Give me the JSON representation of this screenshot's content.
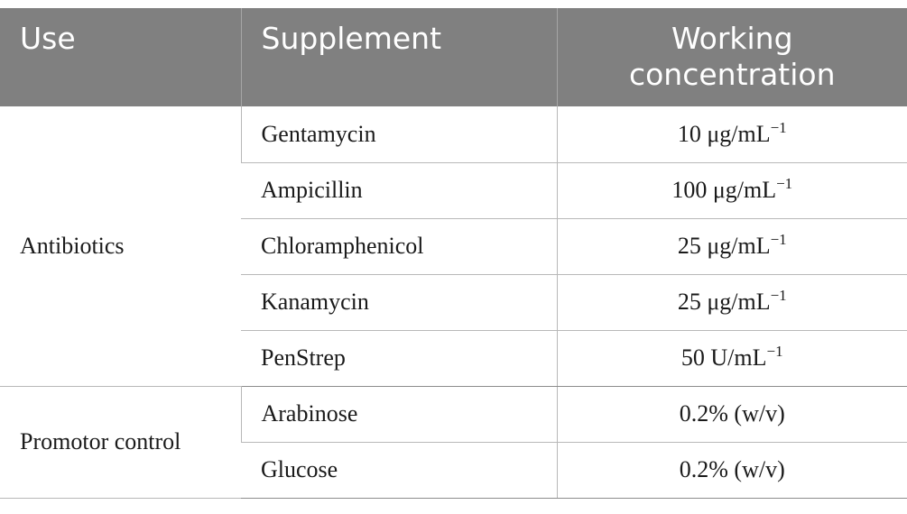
{
  "table": {
    "headers": {
      "use": "Use",
      "supplement": "Supplement",
      "concentration": "Working concentration"
    },
    "groups": [
      {
        "use": "Antibiotics",
        "rows": [
          {
            "supplement": "Gentamycin",
            "concentration": "10 μg/mL",
            "exponent": "−1"
          },
          {
            "supplement": "Ampicillin",
            "concentration": "100 μg/mL",
            "exponent": "−1"
          },
          {
            "supplement": "Chloramphenicol",
            "concentration": "25 μg/mL",
            "exponent": "−1"
          },
          {
            "supplement": "Kanamycin",
            "concentration": "25 μg/mL",
            "exponent": "−1"
          },
          {
            "supplement": "PenStrep",
            "concentration": "50 U/mL",
            "exponent": "−1"
          }
        ]
      },
      {
        "use": "Promotor control",
        "rows": [
          {
            "supplement": "Arabinose",
            "concentration": "0.2% (w/v)"
          },
          {
            "supplement": "Glucose",
            "concentration": "0.2% (w/v)"
          }
        ]
      }
    ]
  }
}
